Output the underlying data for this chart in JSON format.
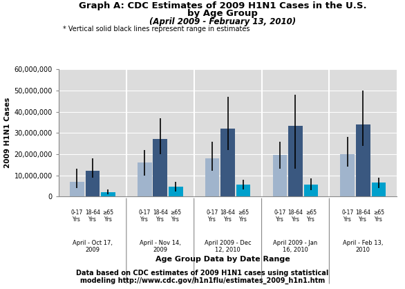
{
  "title_line1": "Graph A: CDC Estimates of 2009 H1N1 Cases in the U.S.",
  "title_line2": "by Age Group",
  "title_line3": "(April 2009 - February 13, 2010)",
  "note": "* Vertical solid black lines represent range in estimates",
  "xlabel": "Age Group Data by Date Range",
  "ylabel": "2009 H1N1 Cases",
  "footnote_line1": "Data based on CDC estimates of 2009 H1N1 cases using statistical",
  "footnote_line2": "modeling http://www.cdc.gov/h1n1flu/estimates_2009_h1n1.htm",
  "date_labels": [
    "April - Oct 17,\n2009",
    "April - Nov 14,\n2009",
    "April 2009 - Dec\n12, 2010",
    "April 2009 - Jan\n16, 2010",
    "April - Feb 13,\n2010"
  ],
  "age_labels": [
    "0-17\nYrs",
    "18-64\nYrs",
    "≥65\nYrs"
  ],
  "bar_values": [
    [
      7000000,
      12000000,
      2000000
    ],
    [
      16000000,
      27000000,
      4500000
    ],
    [
      18000000,
      32000000,
      5500000
    ],
    [
      19500000,
      33500000,
      5500000
    ],
    [
      20000000,
      34000000,
      6500000
    ]
  ],
  "error_low": [
    [
      4000000,
      9000000,
      1000000
    ],
    [
      10000000,
      20000000,
      2500000
    ],
    [
      12000000,
      22000000,
      3500000
    ],
    [
      13000000,
      13000000,
      3000000
    ],
    [
      14000000,
      24000000,
      4000000
    ]
  ],
  "error_high": [
    [
      13000000,
      18000000,
      3500000
    ],
    [
      22000000,
      37000000,
      7000000
    ],
    [
      26000000,
      47000000,
      8000000
    ],
    [
      26000000,
      48000000,
      8500000
    ],
    [
      28000000,
      50000000,
      9000000
    ]
  ],
  "bar_colors": [
    "#a0b4cc",
    "#3a5880",
    "#00a0cc"
  ],
  "ylim": [
    0,
    60000000
  ],
  "yticks": [
    0,
    10000000,
    20000000,
    30000000,
    40000000,
    50000000,
    60000000
  ],
  "background_color": "#ffffff",
  "plot_bg_color": "#dcdcdc"
}
